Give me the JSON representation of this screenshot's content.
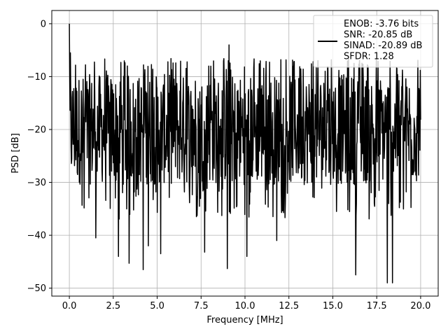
{
  "chart_data": {
    "type": "line",
    "title": "",
    "xlabel": "Frequency [MHz]",
    "ylabel": "PSD [dB]",
    "xlim": [
      -1.0,
      21.0
    ],
    "ylim": [
      -51.5,
      2.5
    ],
    "grid": true,
    "x_ticks": [
      {
        "value": 0.0,
        "label": "0.0"
      },
      {
        "value": 2.5,
        "label": "2.5"
      },
      {
        "value": 5.0,
        "label": "5.0"
      },
      {
        "value": 7.5,
        "label": "7.5"
      },
      {
        "value": 10.0,
        "label": "10.0"
      },
      {
        "value": 12.5,
        "label": "12.5"
      },
      {
        "value": 15.0,
        "label": "15.0"
      },
      {
        "value": 17.5,
        "label": "17.5"
      },
      {
        "value": 20.0,
        "label": "20.0"
      }
    ],
    "y_ticks": [
      {
        "value": 0,
        "label": "0"
      },
      {
        "value": -10,
        "label": "−10"
      },
      {
        "value": -20,
        "label": "−20"
      },
      {
        "value": -30,
        "label": "−30"
      },
      {
        "value": -40,
        "label": "−40"
      },
      {
        "value": -50,
        "label": "−50"
      }
    ],
    "legend": {
      "placement": "upper right",
      "lines": [
        "ENOB: -3.76 bits",
        "SNR: -20.85 dB",
        "SINAD: -20.89 dB",
        "SFDR: 1.28"
      ]
    },
    "series": [
      {
        "color": "#000000",
        "x_range": [
          0.0,
          20.0
        ],
        "points": 1024,
        "dc_peak_db": 0.0,
        "typical_max_db": -9,
        "typical_min_db": -31,
        "floor_mean_db": -20,
        "notable_peaks": [
          {
            "x": 0.0,
            "y": 0.0
          },
          {
            "x": 0.05,
            "y": -5.5
          },
          {
            "x": 9.1,
            "y": -4.0
          },
          {
            "x": 10.1,
            "y": -6.5
          },
          {
            "x": 12.05,
            "y": -6.8
          },
          {
            "x": 16.2,
            "y": -7.5
          },
          {
            "x": 17.0,
            "y": -8.0
          }
        ],
        "notable_dips": [
          {
            "x": 1.5,
            "y": -40.5
          },
          {
            "x": 2.8,
            "y": -44.0
          },
          {
            "x": 3.4,
            "y": -45.3
          },
          {
            "x": 4.2,
            "y": -46.5
          },
          {
            "x": 4.5,
            "y": -42.0
          },
          {
            "x": 5.2,
            "y": -43.5
          },
          {
            "x": 7.7,
            "y": -43.2
          },
          {
            "x": 9.0,
            "y": -46.3
          },
          {
            "x": 10.1,
            "y": -44.0
          },
          {
            "x": 11.8,
            "y": -41.0
          },
          {
            "x": 16.3,
            "y": -47.5
          },
          {
            "x": 18.1,
            "y": -49.0
          },
          {
            "x": 18.4,
            "y": -49.0
          }
        ]
      }
    ]
  }
}
